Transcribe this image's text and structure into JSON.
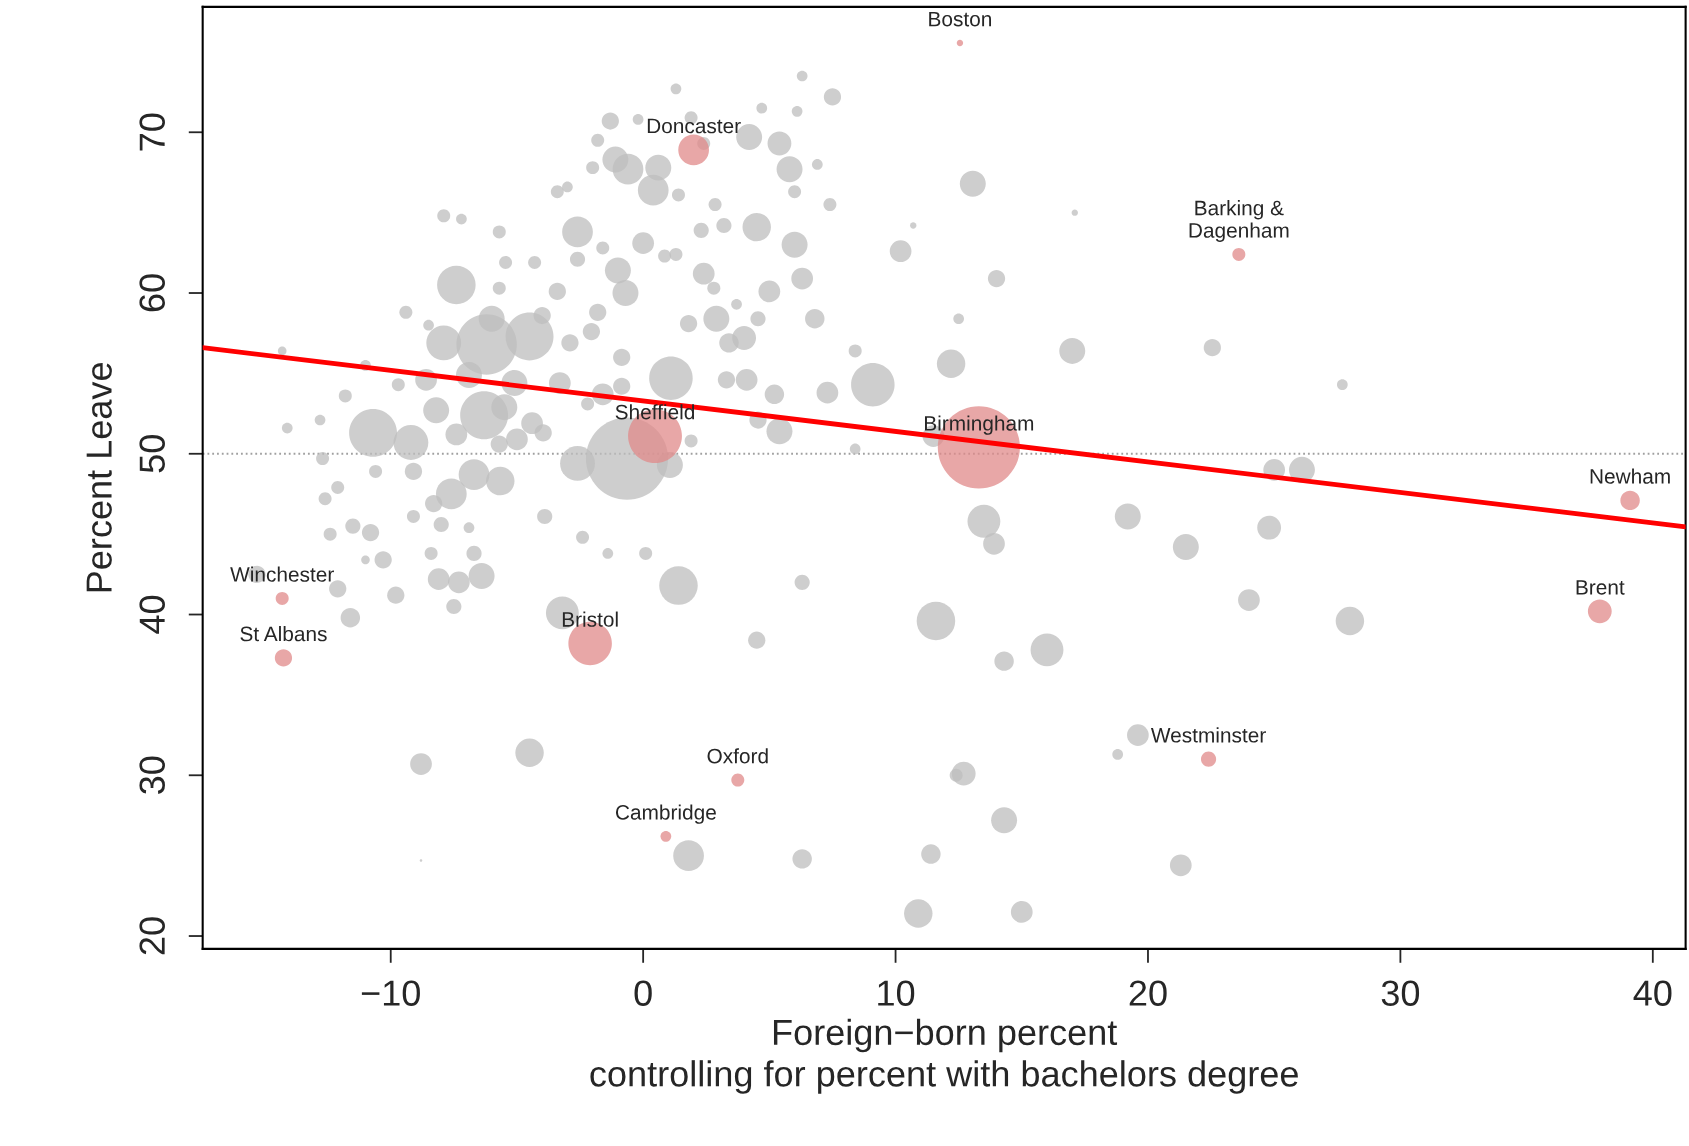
{
  "chart_data": {
    "type": "bubble",
    "xlabel": "Foreign−born percent\ncontrolling for percent with bachelors degree",
    "ylabel": "Percent Leave",
    "xlim": [
      -17.45,
      41.3
    ],
    "ylim": [
      19.2,
      77.8
    ],
    "xticks": [
      {
        "value": -10,
        "label": "−10"
      },
      0,
      10,
      20,
      30,
      40
    ],
    "yticks": [
      20,
      30,
      40,
      50,
      60,
      70
    ],
    "grid": false,
    "legend": false,
    "marker": "circle",
    "ref_lines": [
      {
        "axis": "y",
        "value": 50,
        "color": "#a0a0a0",
        "line_style": "dotted"
      }
    ],
    "series": [
      {
        "color": "#bebebe",
        "x": [
          13.06,
          10.2,
          10.7,
          17.1,
          14.0,
          12.5,
          12.2,
          9.1,
          17.0,
          22.55,
          27.7,
          7.3,
          8.4,
          8.4,
          11.5,
          25.0,
          26.1,
          19.2,
          21.5,
          24.8,
          13.5,
          13.9,
          24.0,
          28.0,
          11.6,
          16.0,
          14.3,
          4.5,
          6.3,
          1.4,
          19.6,
          18.8,
          12.7,
          12.4,
          14.3,
          11.4,
          6.3,
          21.3,
          10.9,
          15.0,
          1.8,
          -4.5,
          -8.8,
          -8.8,
          -3.2,
          0.1,
          -1.4,
          -2.4,
          -0.64,
          1.06,
          -2.6,
          1.1,
          -0.85,
          5.4,
          4.55,
          5.2,
          4.1,
          3.3,
          4.0,
          3.4,
          2.9,
          1.8,
          4.55,
          6.8,
          3.7,
          2.4,
          2.8,
          5.0,
          6.3,
          6.0,
          4.5,
          7.4,
          2.3,
          3.2,
          1.3,
          0.85,
          2.85,
          1.4,
          0.4,
          0.6,
          -0.6,
          -1.1,
          -2.0,
          -1.8,
          -1.3,
          -0.2,
          1.3,
          1.9,
          2.4,
          4.2,
          5.4,
          5.8,
          4.7,
          6.1,
          6.3,
          7.5,
          6.9,
          6.0,
          -2.6,
          -3.4,
          -3.0,
          0,
          -1.0,
          -0.7,
          -1.8,
          -2.05,
          -2.9,
          -0.85,
          -1.6,
          -2.2,
          -3.3,
          -4.4,
          -3.96,
          -5.66,
          -3.9,
          -6.7,
          -7.6,
          -6.4,
          -7.3,
          -8.1,
          -7.5,
          -9.8,
          -11.6,
          -12.1,
          -15.3,
          -11.5,
          -12.4,
          -10.8,
          -10.3,
          -11.0,
          -12.6,
          -12.1,
          -12.7,
          -10.7,
          -9.2,
          -10.6,
          -9.1,
          -14.1,
          -12.8,
          -11.8,
          -11.0,
          -9.7,
          -14.3,
          -9.4,
          -8.5,
          -7.9,
          -7.4,
          -7.9,
          -7.2,
          -5.7,
          -6.2,
          -6.9,
          -6.3,
          -8.2,
          -8.6,
          -7.4,
          -6.0,
          -4.5,
          -5.7,
          -5.45,
          -4.3,
          -4.0,
          -3.4,
          -2.6,
          -1.6,
          -5.1,
          -5.5,
          -5.0,
          -5.7,
          -8.3,
          -8.0,
          -6.9,
          -6.7,
          -8.4,
          -9.1,
          1.9
        ],
        "values": [
          66.8,
          62.6,
          64.2,
          65.0,
          60.9,
          58.4,
          55.6,
          54.3,
          56.4,
          56.6,
          54.3,
          53.8,
          56.4,
          50.3,
          51.1,
          49.0,
          49.0,
          46.1,
          44.2,
          45.4,
          45.8,
          44.4,
          40.9,
          39.6,
          39.6,
          37.8,
          37.1,
          38.4,
          42.0,
          41.8,
          32.5,
          31.3,
          30.1,
          30.0,
          27.2,
          25.1,
          24.8,
          24.4,
          21.4,
          21.5,
          25.0,
          31.4,
          30.7,
          24.7,
          40.1,
          43.8,
          43.8,
          44.8,
          49.7,
          49.3,
          49.4,
          54.7,
          54.2,
          51.4,
          52.1,
          53.7,
          54.6,
          54.6,
          57.2,
          56.9,
          58.4,
          58.1,
          58.4,
          58.4,
          59.3,
          61.2,
          60.3,
          60.1,
          60.9,
          63.0,
          64.1,
          65.5,
          63.9,
          64.2,
          62.4,
          62.3,
          65.5,
          66.1,
          66.4,
          67.8,
          67.7,
          68.3,
          67.8,
          69.5,
          70.7,
          70.8,
          72.7,
          70.9,
          69.3,
          69.7,
          69.3,
          67.7,
          71.5,
          71.3,
          73.5,
          72.2,
          68.0,
          66.3,
          63.8,
          66.3,
          66.6,
          63.1,
          61.4,
          60.0,
          58.8,
          57.6,
          56.9,
          56.0,
          53.7,
          53.1,
          54.4,
          51.9,
          51.3,
          48.3,
          46.1,
          48.7,
          47.5,
          42.4,
          42.0,
          42.2,
          40.5,
          41.2,
          39.8,
          41.6,
          42.5,
          45.5,
          45.0,
          45.1,
          43.4,
          43.4,
          47.2,
          47.9,
          49.7,
          51.3,
          50.7,
          48.9,
          48.9,
          51.6,
          52.1,
          53.6,
          55.5,
          54.3,
          56.4,
          58.8,
          58.0,
          56.9,
          60.5,
          64.8,
          64.6,
          63.8,
          56.8,
          54.9,
          52.4,
          52.7,
          54.6,
          51.2,
          58.4,
          57.3,
          60.3,
          61.9,
          61.9,
          58.6,
          60.1,
          62.1,
          62.8,
          54.4,
          52.9,
          50.9,
          50.6,
          46.9,
          45.6,
          45.4,
          43.8,
          43.8,
          46.1,
          50.8
        ],
        "sizes": [
          0.1,
          0.07,
          0.006,
          0.006,
          0.044,
          0.017,
          0.12,
          0.28,
          0.1,
          0.044,
          0.017,
          0.07,
          0.025,
          0.017,
          0.07,
          0.07,
          0.1,
          0.1,
          0.1,
          0.084,
          0.16,
          0.07,
          0.07,
          0.12,
          0.22,
          0.16,
          0.056,
          0.044,
          0.034,
          0.22,
          0.07,
          0.017,
          0.084,
          0.025,
          0.1,
          0.056,
          0.056,
          0.07,
          0.12,
          0.07,
          0.14,
          0.12,
          0.07,
          0.001,
          0.16,
          0.025,
          0.017,
          0.025,
          1.0,
          0.1,
          0.18,
          0.28,
          0.044,
          0.1,
          0.044,
          0.056,
          0.07,
          0.044,
          0.084,
          0.056,
          0.1,
          0.044,
          0.034,
          0.056,
          0.017,
          0.07,
          0.025,
          0.07,
          0.07,
          0.1,
          0.12,
          0.025,
          0.034,
          0.034,
          0.025,
          0.025,
          0.025,
          0.025,
          0.14,
          0.1,
          0.14,
          0.1,
          0.025,
          0.025,
          0.044,
          0.017,
          0.017,
          0.025,
          0.025,
          0.1,
          0.084,
          0.1,
          0.017,
          0.017,
          0.017,
          0.044,
          0.017,
          0.025,
          0.14,
          0.025,
          0.017,
          0.07,
          0.1,
          0.1,
          0.044,
          0.044,
          0.044,
          0.044,
          0.07,
          0.025,
          0.07,
          0.07,
          0.044,
          0.12,
          0.034,
          0.14,
          0.14,
          0.1,
          0.07,
          0.07,
          0.034,
          0.044,
          0.056,
          0.044,
          0.044,
          0.034,
          0.025,
          0.044,
          0.044,
          0.011,
          0.025,
          0.025,
          0.025,
          0.34,
          0.18,
          0.025,
          0.044,
          0.017,
          0.017,
          0.025,
          0.017,
          0.025,
          0.011,
          0.025,
          0.017,
          0.18,
          0.22,
          0.025,
          0.017,
          0.025,
          0.54,
          0.1,
          0.34,
          0.1,
          0.07,
          0.07,
          0.1,
          0.34,
          0.025,
          0.025,
          0.025,
          0.044,
          0.044,
          0.034,
          0.025,
          0.1,
          0.1,
          0.07,
          0.044,
          0.044,
          0.034,
          0.017,
          0.034,
          0.025,
          0.025,
          0.025
        ]
      },
      {
        "color": "#e08a8a",
        "x": [
          12.55,
          2.0,
          23.6,
          0.47,
          13.3,
          39.1,
          -14.3,
          37.9,
          -14.25,
          -2.1,
          22.4,
          3.75,
          0.9
        ],
        "values": [
          75.55,
          68.9,
          62.4,
          51.1,
          50.4,
          47.1,
          41.0,
          40.2,
          37.3,
          38.2,
          31.0,
          29.7,
          26.2
        ],
        "sizes": [
          0.006,
          0.14,
          0.025,
          0.43,
          1.0,
          0.056,
          0.025,
          0.084,
          0.044,
          0.28,
          0.034,
          0.025,
          0.017
        ]
      },
      {
        "type": "line",
        "color": "#ff0000",
        "line_style": "solid",
        "marker": "none",
        "x": [
          -17.45,
          41.3
        ],
        "values": [
          56.6,
          45.45
        ]
      }
    ],
    "annotations": [
      {
        "text": "Boston",
        "x": 12.55,
        "y": 75.55
      },
      {
        "text": "Doncaster",
        "x": 2.0,
        "y": 68.9
      },
      {
        "text": "Barking &\nDagenham",
        "x": 23.6,
        "y": 62.4
      },
      {
        "text": "Sheffield",
        "x": 0.47,
        "y": 51.1
      },
      {
        "text": "Birmingham",
        "x": 13.3,
        "y": 50.4
      },
      {
        "text": "Newham",
        "x": 39.1,
        "y": 47.1
      },
      {
        "text": "Winchester",
        "x": -14.3,
        "y": 41.0
      },
      {
        "text": "Brent",
        "x": 37.9,
        "y": 40.2
      },
      {
        "text": "St Albans",
        "x": -14.25,
        "y": 37.3
      },
      {
        "text": "Bristol",
        "x": -2.1,
        "y": 38.2
      },
      {
        "text": "Westminster",
        "x": 22.4,
        "y": 31.0
      },
      {
        "text": "Oxford",
        "x": 3.75,
        "y": 29.7
      },
      {
        "text": "Cambridge",
        "x": 0.9,
        "y": 26.2
      }
    ]
  }
}
